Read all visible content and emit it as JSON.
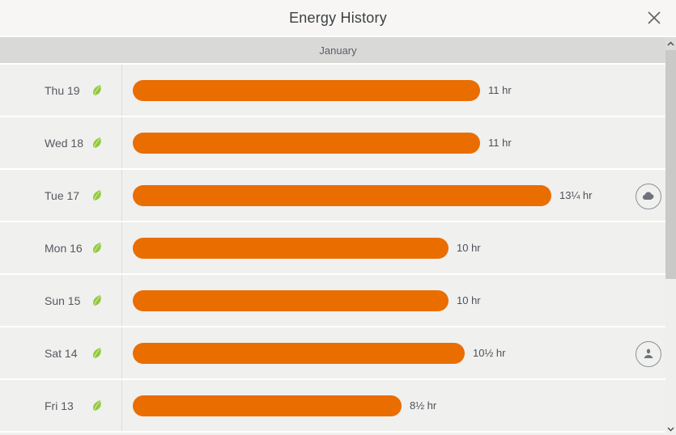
{
  "window": {
    "title": "Energy History",
    "close_label": "Close"
  },
  "month_header": "January",
  "rows": [
    {
      "day": "Thu 19",
      "leaf": true,
      "hours": 11,
      "duration_label": "11 hr",
      "icon": null
    },
    {
      "day": "Wed 18",
      "leaf": true,
      "hours": 11,
      "duration_label": "11 hr",
      "icon": null
    },
    {
      "day": "Tue 17",
      "leaf": true,
      "hours": 13.25,
      "duration_label": "13¼ hr",
      "icon": "cloud"
    },
    {
      "day": "Mon 16",
      "leaf": true,
      "hours": 10,
      "duration_label": "10 hr",
      "icon": null
    },
    {
      "day": "Sun 15",
      "leaf": true,
      "hours": 10,
      "duration_label": "10 hr",
      "icon": null
    },
    {
      "day": "Sat 14",
      "leaf": true,
      "hours": 10.5,
      "duration_label": "10½ hr",
      "icon": "away"
    },
    {
      "day": "Fri 13",
      "leaf": true,
      "hours": 8.5,
      "duration_label": "8½ hr",
      "icon": null
    }
  ],
  "chart_data": {
    "type": "bar",
    "orientation": "horizontal",
    "title": "Energy History",
    "group_label": "January",
    "categories": [
      "Thu 19",
      "Wed 18",
      "Tue 17",
      "Mon 16",
      "Sun 15",
      "Sat 14",
      "Fri 13"
    ],
    "values": [
      11,
      11,
      13.25,
      10,
      10,
      10.5,
      8.5
    ],
    "value_unit": "hr",
    "annotations": [
      {
        "category": "Tue 17",
        "icon": "weather-cloud"
      },
      {
        "category": "Sat 14",
        "icon": "away-person"
      }
    ],
    "leaf_days": [
      "Thu 19",
      "Wed 18",
      "Tue 17",
      "Mon 16",
      "Sun 15",
      "Sat 14",
      "Fri 13"
    ]
  },
  "colors": {
    "bar_orange": "#ea6d00",
    "leaf_green": "#92c83e",
    "leaf_highlight": "#cdea8e",
    "row_background": "#f0f0ef",
    "header_background": "#f7f6f4",
    "month_band_background": "#d9d9d8",
    "icon_gray": "#6e737b"
  },
  "icons": {
    "close": "x-icon",
    "cloud": "cloud-icon",
    "away": "person-icon",
    "leaf": "leaf-icon",
    "scroll_up": "chevron-up-icon",
    "scroll_down": "chevron-down-icon"
  }
}
